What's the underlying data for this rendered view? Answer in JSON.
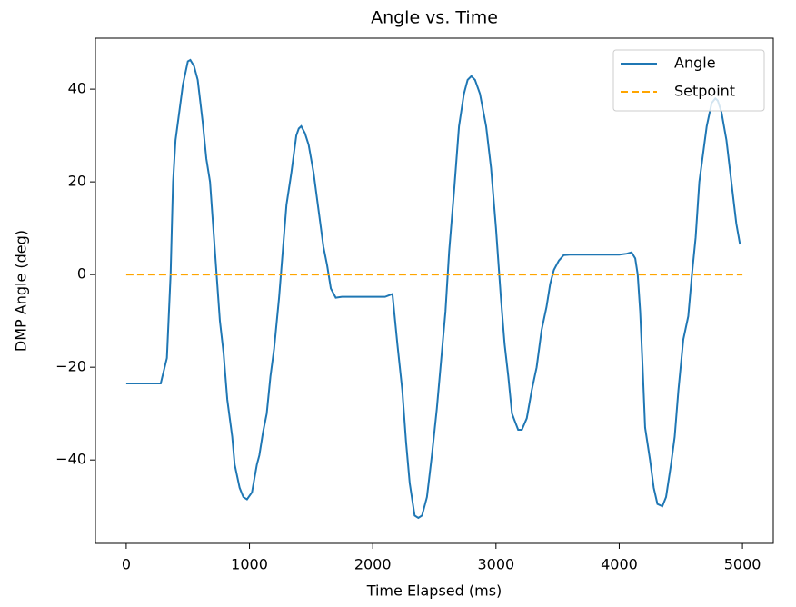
{
  "chart_data": {
    "type": "line",
    "title": "Angle vs. Time",
    "x_label": "Time Elapsed (ms)",
    "y_label": "DMP Angle (deg)",
    "xlim": [
      -250,
      5250
    ],
    "ylim": [
      -58,
      51
    ],
    "xticks": [
      0,
      1000,
      2000,
      3000,
      4000,
      5000
    ],
    "yticks": [
      {
        "value": -40,
        "label": "−40"
      },
      {
        "value": -20,
        "label": "−20"
      },
      0,
      20,
      40
    ],
    "legend": "upper right",
    "grid": false,
    "series": [
      {
        "name": "Angle",
        "color": "#1f77b4",
        "linestyle": "solid",
        "x": [
          0,
          280,
          330,
          360,
          380,
          400,
          430,
          460,
          500,
          520,
          550,
          580,
          620,
          650,
          680,
          720,
          760,
          790,
          820,
          860,
          880,
          920,
          950,
          980,
          1020,
          1060,
          1080,
          1110,
          1140,
          1170,
          1200,
          1240,
          1270,
          1300,
          1340,
          1380,
          1400,
          1420,
          1450,
          1480,
          1520,
          1560,
          1600,
          1630,
          1660,
          1700,
          1750,
          2100,
          2160,
          2200,
          2240,
          2270,
          2300,
          2340,
          2370,
          2400,
          2440,
          2480,
          2520,
          2560,
          2590,
          2620,
          2660,
          2700,
          2740,
          2770,
          2800,
          2830,
          2870,
          2920,
          2960,
          3000,
          3040,
          3070,
          3100,
          3130,
          3180,
          3210,
          3250,
          3290,
          3330,
          3370,
          3410,
          3440,
          3470,
          3510,
          3550,
          3600,
          4000,
          4060,
          4100,
          4130,
          4150,
          4170,
          4190,
          4210,
          4250,
          4280,
          4310,
          4350,
          4380,
          4420,
          4450,
          4480,
          4520,
          4560,
          4590,
          4620,
          4650,
          4680,
          4710,
          4750,
          4780,
          4800,
          4830,
          4870,
          4910,
          4950,
          4980
        ],
        "values": [
          -23.5,
          -23.5,
          -18,
          0,
          20,
          29,
          35,
          41,
          46,
          46.3,
          45,
          42,
          33,
          25,
          20,
          5,
          -10,
          -17,
          -27,
          -35,
          -41,
          -46,
          -48,
          -48.5,
          -47,
          -41,
          -39,
          -34,
          -30,
          -22,
          -16,
          -5,
          5,
          15,
          22,
          30,
          31.5,
          32,
          30.5,
          28,
          22,
          14,
          6,
          2,
          -3,
          -5,
          -4.8,
          -4.8,
          -4.2,
          -15,
          -25,
          -36,
          -45,
          -52,
          -52.5,
          -52,
          -48,
          -39,
          -29,
          -17,
          -8,
          5,
          18,
          32,
          39,
          42,
          42.8,
          42,
          39,
          32,
          23,
          10,
          -5,
          -15,
          -22,
          -30,
          -33.5,
          -33.5,
          -31,
          -25,
          -20,
          -12,
          -7,
          -2,
          1,
          3,
          4.2,
          4.3,
          4.3,
          4.5,
          4.8,
          3.5,
          0,
          -8,
          -20,
          -33,
          -40,
          -46,
          -49.5,
          -50,
          -48,
          -41,
          -35,
          -25,
          -14,
          -9,
          0,
          8,
          20,
          26,
          32,
          37,
          38,
          37.5,
          35,
          29,
          20,
          11,
          6.5
        ]
      },
      {
        "name": "Setpoint",
        "color": "orange",
        "linestyle": "dashed",
        "x": [
          0,
          5000
        ],
        "values": [
          0,
          0
        ]
      }
    ]
  }
}
